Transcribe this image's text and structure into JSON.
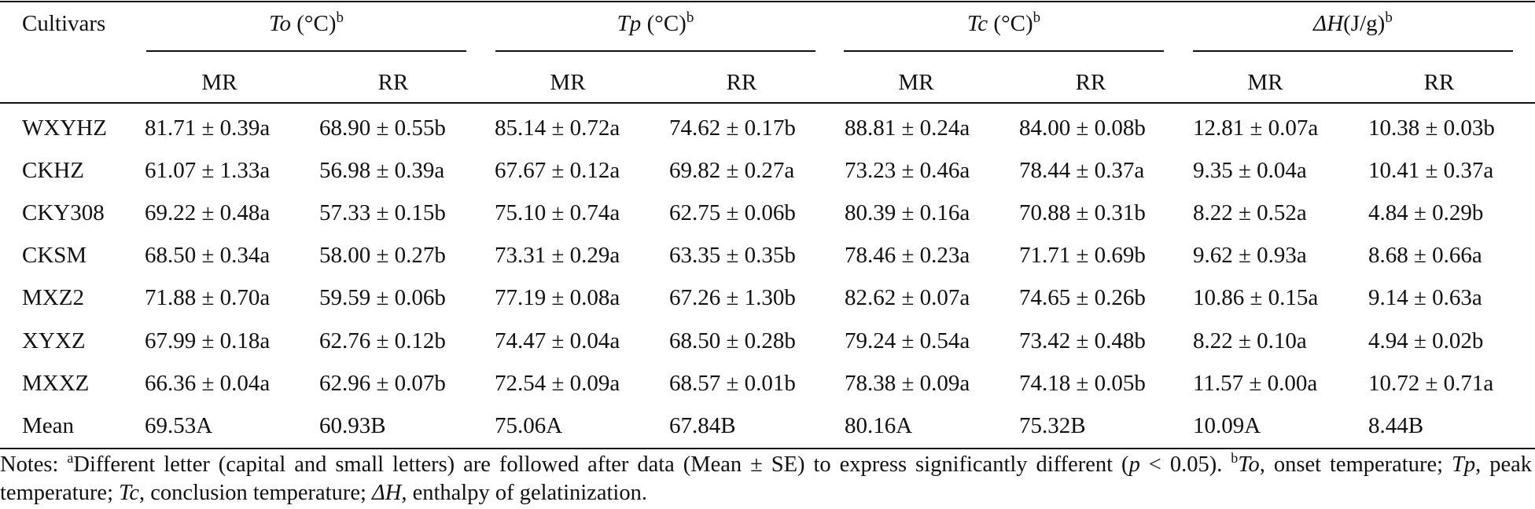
{
  "table": {
    "header": {
      "first_col": "Cultivars",
      "groups": [
        {
          "sym": "To",
          "unit": " (°C)",
          "sup": "b"
        },
        {
          "sym": "Tp",
          "unit": " (°C)",
          "sup": "b"
        },
        {
          "sym": "Tc",
          "unit": " (°C)",
          "sup": "b"
        },
        {
          "sym": "ΔH",
          "unit": "(J/g)",
          "sup": "b"
        }
      ],
      "subheads": [
        "MR",
        "RR",
        "MR",
        "RR",
        "MR",
        "RR",
        "MR",
        "RR"
      ]
    },
    "rows": [
      {
        "name": "WXYHZ",
        "values": [
          "81.71 ± 0.39a",
          "68.90 ± 0.55b",
          "85.14 ± 0.72a",
          "74.62 ± 0.17b",
          "88.81 ± 0.24a",
          "84.00 ± 0.08b",
          "12.81 ± 0.07a",
          "10.38 ± 0.03b"
        ]
      },
      {
        "name": "CKHZ",
        "values": [
          "61.07 ± 1.33a",
          "56.98 ± 0.39a",
          "67.67 ± 0.12a",
          "69.82 ± 0.27a",
          "73.23 ± 0.46a",
          "78.44 ± 0.37a",
          "9.35 ± 0.04a",
          "10.41 ± 0.37a"
        ]
      },
      {
        "name": "CKY308",
        "values": [
          "69.22 ± 0.48a",
          "57.33 ± 0.15b",
          "75.10 ± 0.74a",
          "62.75 ± 0.06b",
          "80.39 ± 0.16a",
          "70.88 ± 0.31b",
          "8.22 ± 0.52a",
          "4.84 ± 0.29b"
        ]
      },
      {
        "name": "CKSM",
        "values": [
          "68.50 ± 0.34a",
          "58.00 ± 0.27b",
          "73.31 ± 0.29a",
          "63.35 ± 0.35b",
          "78.46 ± 0.23a",
          "71.71 ± 0.69b",
          "9.62 ± 0.93a",
          "8.68 ± 0.66a"
        ]
      },
      {
        "name": "MXZ2",
        "values": [
          "71.88 ± 0.70a",
          "59.59 ± 0.06b",
          "77.19 ± 0.08a",
          "67.26 ± 1.30b",
          "82.62 ± 0.07a",
          "74.65 ± 0.26b",
          "10.86 ± 0.15a",
          "9.14 ± 0.63a"
        ]
      },
      {
        "name": "XYXZ",
        "values": [
          "67.99 ± 0.18a",
          "62.76 ± 0.12b",
          "74.47 ± 0.04a",
          "68.50 ± 0.28b",
          "79.24 ± 0.54a",
          "73.42 ± 0.48b",
          "8.22 ± 0.10a",
          "4.94 ± 0.02b"
        ]
      },
      {
        "name": "MXXZ",
        "values": [
          "66.36 ± 0.04a",
          "62.96 ± 0.07b",
          "72.54 ± 0.09a",
          "68.57 ± 0.01b",
          "78.38 ± 0.09a",
          "74.18 ± 0.05b",
          "11.57 ± 0.00a",
          "10.72 ± 0.71a"
        ]
      },
      {
        "name": "Mean",
        "values": [
          "69.53A",
          "60.93B",
          "75.06A",
          "67.84B",
          "80.16A",
          "75.32B",
          "10.09A",
          "8.44B"
        ]
      }
    ]
  },
  "notes": {
    "prefix": "Notes: ",
    "sup_a": "a",
    "text1": "Different letter (capital and small letters) are followed after data (Mean ± SE) to express significantly different (",
    "p": "p",
    "text2": " < 0.05). ",
    "sup_b": "b",
    "to": "To",
    "to_def": ", onset temperature; ",
    "tp": "Tp",
    "tp_def": ", peak temperature; ",
    "tc": "Tc",
    "tc_def": ", conclusion temperature; ",
    "dh": "ΔH",
    "dh_def": ", enthalpy of gelatinization."
  }
}
